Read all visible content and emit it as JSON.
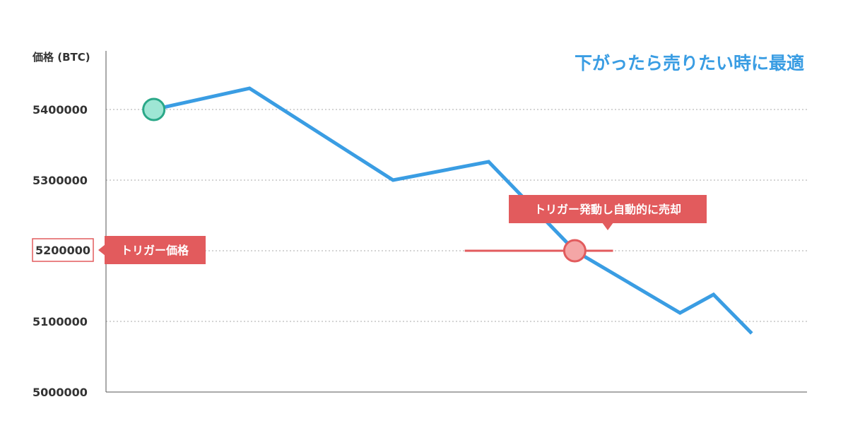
{
  "headline": "下がったら売りたい時に最適",
  "chart_data": {
    "type": "line",
    "title": "下がったら売りたい時に最適",
    "ylabel": "価格 (BTC)",
    "xlabel": "",
    "ylim": [
      5000000,
      5400000
    ],
    "yticks": [
      5400000,
      5300000,
      5200000,
      5100000,
      5000000
    ],
    "ytick_labels": [
      "5400000",
      "5300000",
      "5200000",
      "5100000",
      "5000000"
    ],
    "xlim": [
      0,
      13
    ],
    "grid": "horizontal dotted",
    "series": [
      {
        "x": [
          1,
          3,
          6,
          8,
          9.8,
          12,
          12.7,
          13.5
        ],
        "values": [
          5400000,
          5430000,
          5300000,
          5326000,
          5200000,
          5112000,
          5138000,
          5083000
        ],
        "color": "#3a9de3"
      }
    ],
    "trigger": {
      "price": 5200000,
      "price_label": "5200000",
      "label": "トリガー価格",
      "line_x_range": [
        7.5,
        10.6
      ],
      "color": "#e25b5d"
    },
    "annotations": {
      "start_marker_color": "#9ee6d4",
      "sell_label": "トリガー発動し自動的に売却",
      "sell_x": 9.8
    }
  }
}
